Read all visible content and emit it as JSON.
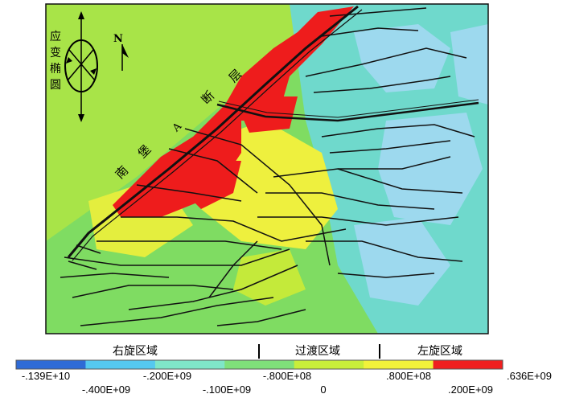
{
  "map": {
    "fault_label_chars": [
      "南",
      "堡",
      "A",
      "断",
      "层"
    ],
    "ellipse_label_chars": [
      "应",
      "变",
      "椭",
      "圆"
    ],
    "north_label": "N"
  },
  "legend": {
    "zones": [
      "右旋区域",
      "过渡区域",
      "左旋区域"
    ],
    "ticks_top": [
      "-.139E+10",
      "-.200E+09",
      "-.800E+08",
      ".800E+08",
      ".636E+09"
    ],
    "ticks_bottom": [
      "-.400E+09",
      "-.100E+09",
      "0",
      ".200E+09"
    ],
    "colors": [
      "#2f6bd6",
      "#55c8f0",
      "#7fe6c8",
      "#7fe07a",
      "#c8ee3a",
      "#f2f23a",
      "#ef1f1f"
    ]
  },
  "palette": {
    "blue": "#9dd9ee",
    "teal": "#6fd9cc",
    "green": "#7fdc62",
    "yellowgreen": "#c4ea3a",
    "yellow": "#eef03e",
    "red": "#ee1c1c"
  }
}
